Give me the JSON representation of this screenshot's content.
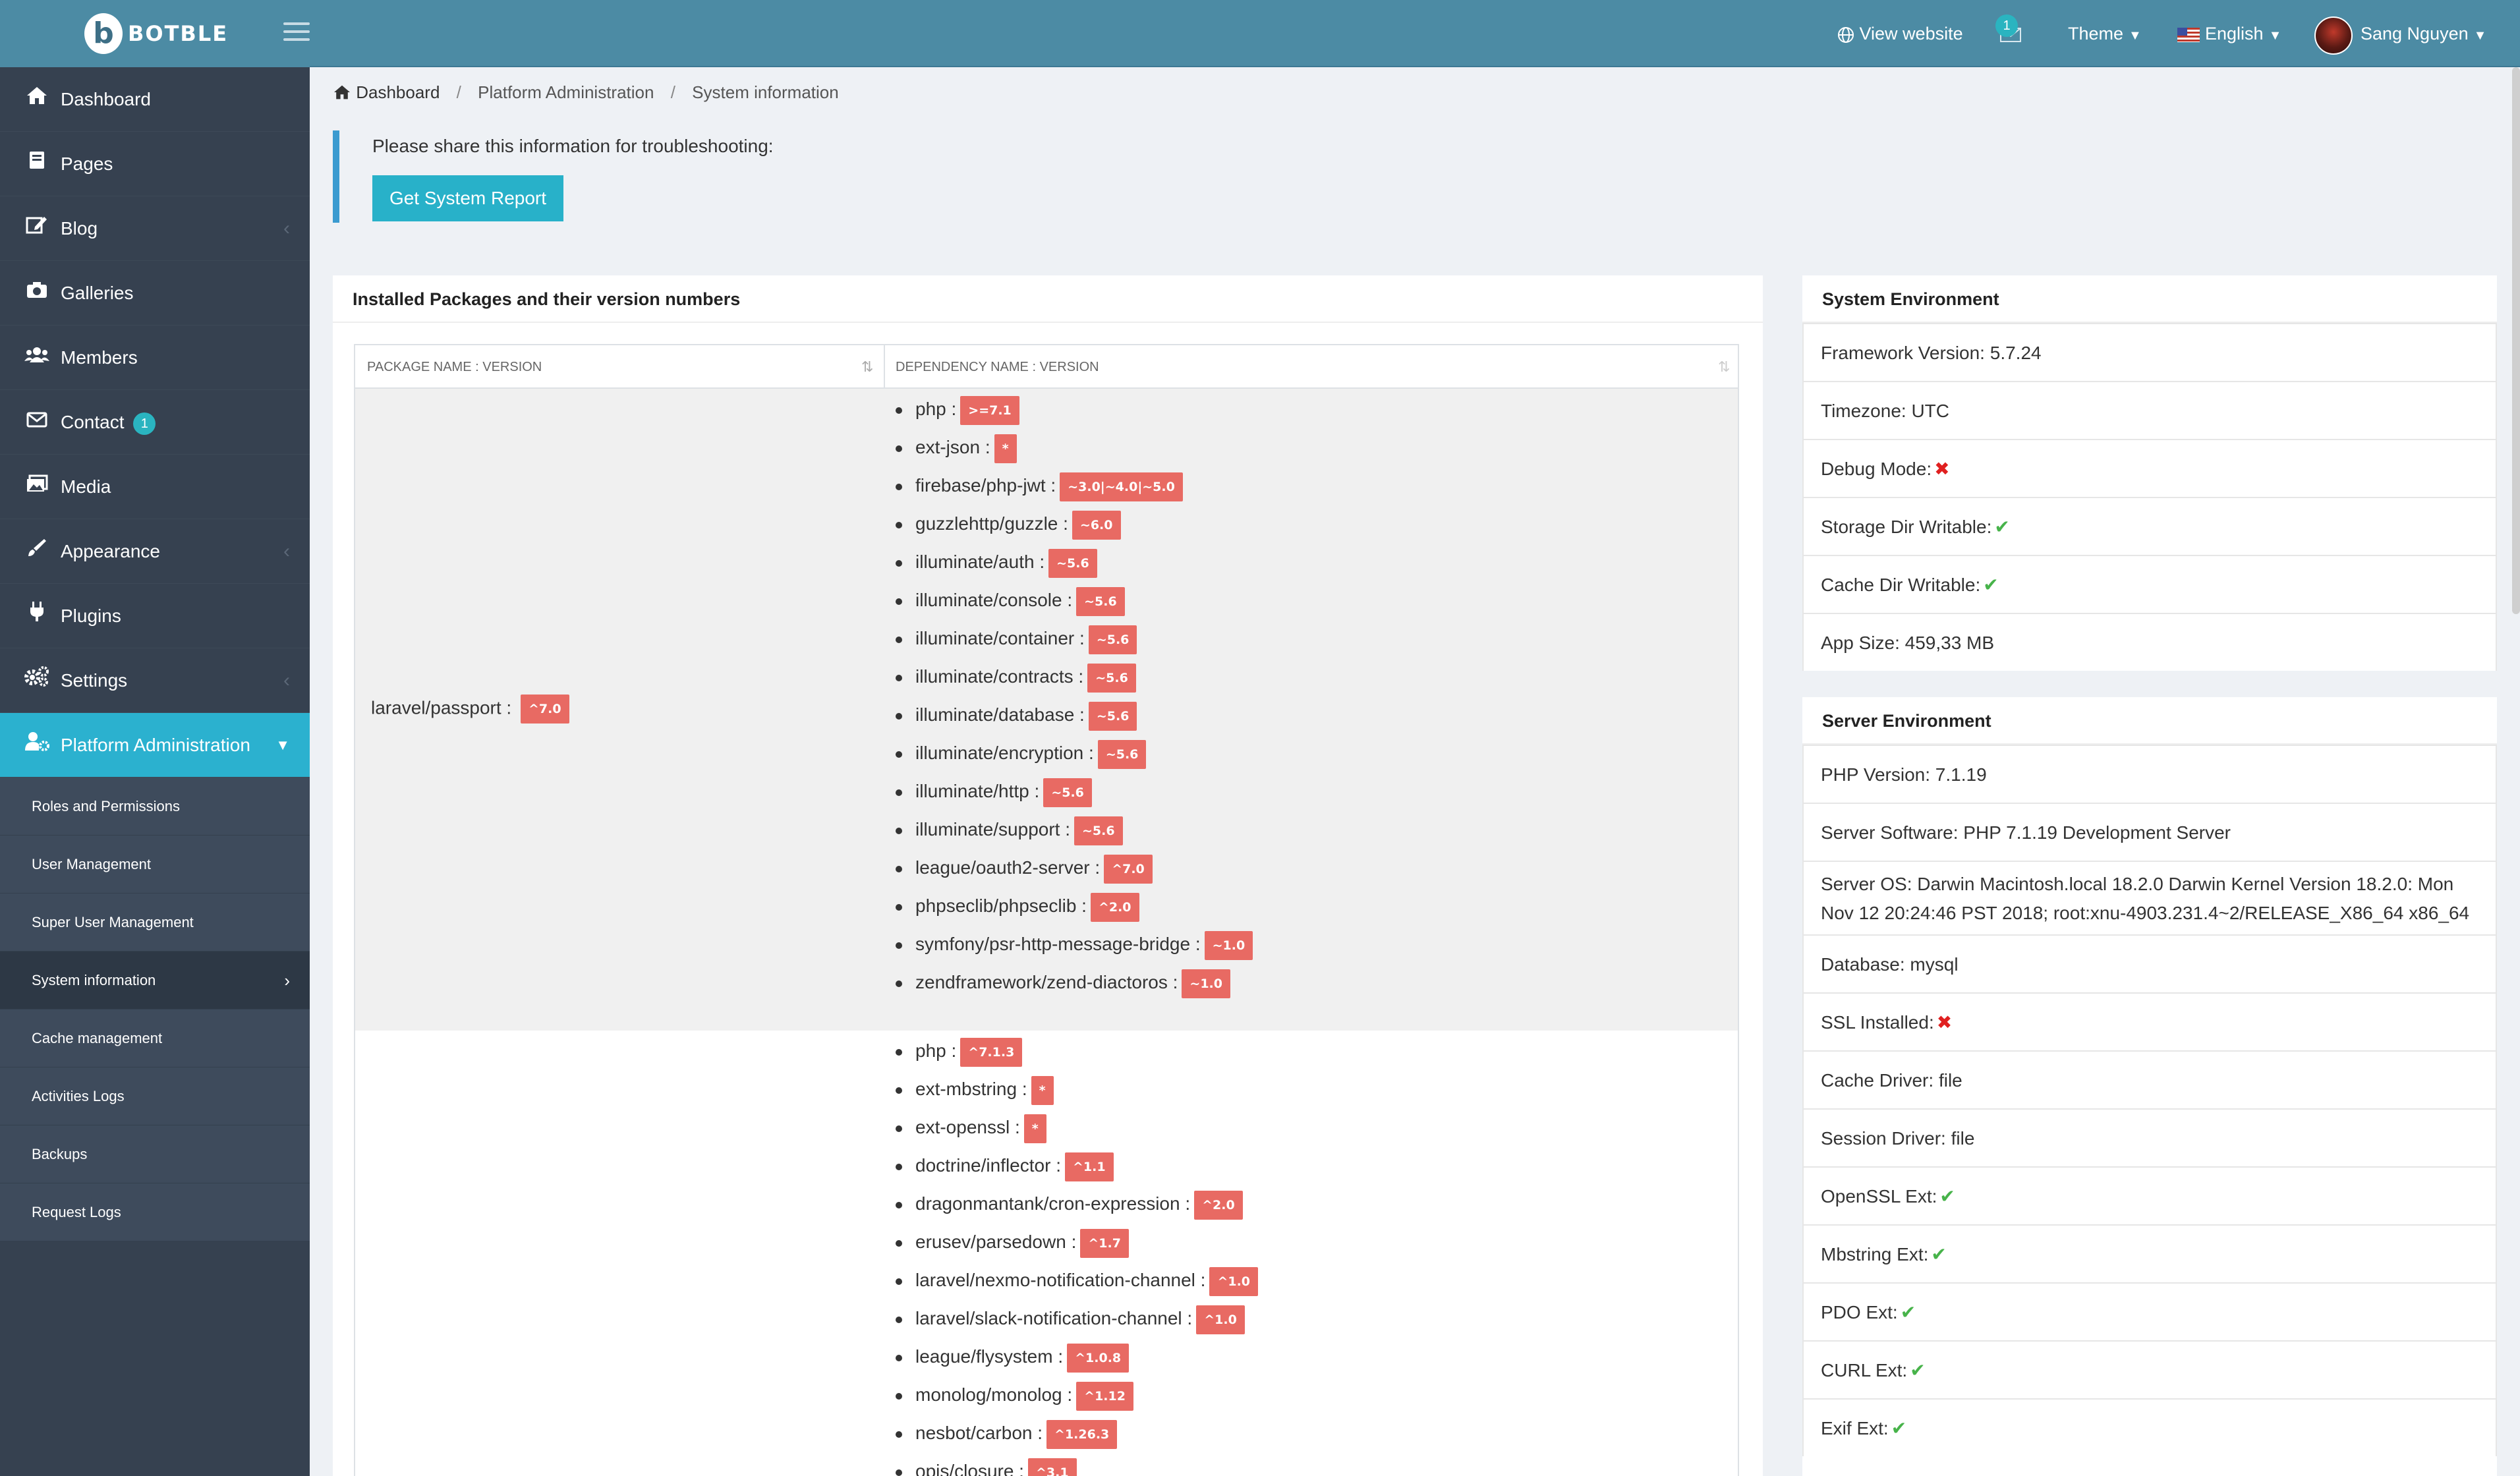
{
  "header": {
    "brand": "BOTBLE",
    "view_website": "View website",
    "notification_count": "1",
    "theme": "Theme",
    "language": "English",
    "user_name": "Sang Nguyen"
  },
  "sidebar": {
    "items": [
      {
        "label": "Dashboard",
        "icon": "home-icon"
      },
      {
        "label": "Pages",
        "icon": "book-icon"
      },
      {
        "label": "Blog",
        "icon": "edit-icon"
      },
      {
        "label": "Galleries",
        "icon": "camera-icon"
      },
      {
        "label": "Members",
        "icon": "users-icon"
      },
      {
        "label": "Contact",
        "icon": "envelope-icon",
        "badge": "1"
      },
      {
        "label": "Media",
        "icon": "images-icon"
      },
      {
        "label": "Appearance",
        "icon": "paintbrush-icon"
      },
      {
        "label": "Plugins",
        "icon": "plug-icon"
      },
      {
        "label": "Settings",
        "icon": "cogs-icon"
      },
      {
        "label": "Platform Administration",
        "icon": "user-cog-icon"
      }
    ],
    "submenu": [
      "Roles and Permissions",
      "User Management",
      "Super User Management",
      "System information",
      "Cache management",
      "Activities Logs",
      "Backups",
      "Request Logs"
    ]
  },
  "breadcrumb": {
    "home": "Dashboard",
    "level2": "Platform Administration",
    "current": "System information"
  },
  "notice": {
    "text": "Please share this information for troubleshooting:",
    "button": "Get System Report"
  },
  "packages": {
    "title": "Installed Packages and their version numbers",
    "col_package": "Package name : Version",
    "col_dependency": "Dependency name : Version",
    "rows": [
      {
        "name": "laravel/passport :",
        "version": "^7.0",
        "deps": [
          {
            "name": "php :",
            "version": ">=7.1"
          },
          {
            "name": "ext-json :",
            "version": "*"
          },
          {
            "name": "firebase/php-jwt :",
            "version": "~3.0|~4.0|~5.0"
          },
          {
            "name": "guzzlehttp/guzzle :",
            "version": "~6.0"
          },
          {
            "name": "illuminate/auth :",
            "version": "~5.6"
          },
          {
            "name": "illuminate/console :",
            "version": "~5.6"
          },
          {
            "name": "illuminate/container :",
            "version": "~5.6"
          },
          {
            "name": "illuminate/contracts :",
            "version": "~5.6"
          },
          {
            "name": "illuminate/database :",
            "version": "~5.6"
          },
          {
            "name": "illuminate/encryption :",
            "version": "~5.6"
          },
          {
            "name": "illuminate/http :",
            "version": "~5.6"
          },
          {
            "name": "illuminate/support :",
            "version": "~5.6"
          },
          {
            "name": "league/oauth2-server :",
            "version": "^7.0"
          },
          {
            "name": "phpseclib/phpseclib :",
            "version": "^2.0"
          },
          {
            "name": "symfony/psr-http-message-bridge :",
            "version": "~1.0"
          },
          {
            "name": "zendframework/zend-diactoros :",
            "version": "~1.0"
          }
        ]
      },
      {
        "name": "",
        "version": "",
        "deps": [
          {
            "name": "php :",
            "version": "^7.1.3"
          },
          {
            "name": "ext-mbstring :",
            "version": "*"
          },
          {
            "name": "ext-openssl :",
            "version": "*"
          },
          {
            "name": "doctrine/inflector :",
            "version": "^1.1"
          },
          {
            "name": "dragonmantank/cron-expression :",
            "version": "^2.0"
          },
          {
            "name": "erusev/parsedown :",
            "version": "^1.7"
          },
          {
            "name": "laravel/nexmo-notification-channel :",
            "version": "^1.0"
          },
          {
            "name": "laravel/slack-notification-channel :",
            "version": "^1.0"
          },
          {
            "name": "league/flysystem :",
            "version": "^1.0.8"
          },
          {
            "name": "monolog/monolog :",
            "version": "^1.12"
          },
          {
            "name": "nesbot/carbon :",
            "version": "^1.26.3"
          },
          {
            "name": "opis/closure :",
            "version": "^3.1"
          }
        ]
      }
    ]
  },
  "system_env": {
    "title": "System Environment",
    "rows": [
      {
        "text": "Framework Version: 5.7.24",
        "mark": ""
      },
      {
        "text": "Timezone: UTC",
        "mark": ""
      },
      {
        "text": "Debug Mode:",
        "mark": "cross"
      },
      {
        "text": "Storage Dir Writable:",
        "mark": "check"
      },
      {
        "text": "Cache Dir Writable:",
        "mark": "check"
      },
      {
        "text": "App Size: 459,33 MB",
        "mark": ""
      }
    ]
  },
  "server_env": {
    "title": "Server Environment",
    "rows": [
      {
        "text": "PHP Version: 7.1.19",
        "mark": ""
      },
      {
        "text": "Server Software: PHP 7.1.19 Development Server",
        "mark": ""
      },
      {
        "text": "Server OS: Darwin Macintosh.local 18.2.0 Darwin Kernel Version 18.2.0: Mon Nov 12 20:24:46 PST 2018; root:xnu-4903.231.4~2/RELEASE_X86_64 x86_64",
        "mark": "",
        "tall": true
      },
      {
        "text": "Database: mysql",
        "mark": ""
      },
      {
        "text": "SSL Installed:",
        "mark": "cross"
      },
      {
        "text": "Cache Driver: file",
        "mark": ""
      },
      {
        "text": "Session Driver: file",
        "mark": ""
      },
      {
        "text": "OpenSSL Ext:",
        "mark": "check"
      },
      {
        "text": "Mbstring Ext:",
        "mark": "check"
      },
      {
        "text": "PDO Ext:",
        "mark": "check"
      },
      {
        "text": "CURL Ext:",
        "mark": "check"
      },
      {
        "text": "Exif Ext:",
        "mark": "check"
      }
    ]
  },
  "colors": {
    "header": "#4c8ba4",
    "sidebar": "#364150",
    "active": "#2bb1cf",
    "badge": "#e86a63",
    "check": "#47b34a",
    "cross": "#e02020"
  }
}
